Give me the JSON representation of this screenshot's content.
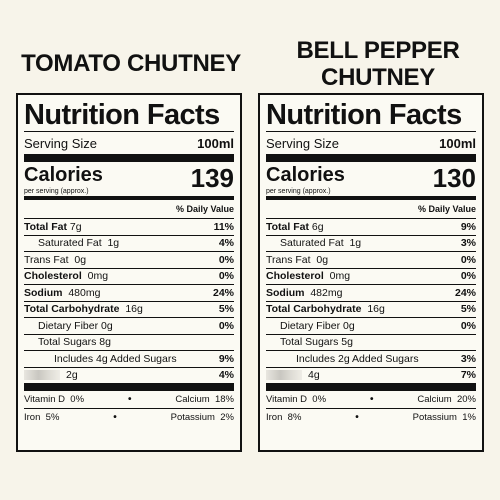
{
  "products": [
    {
      "title": "TOMATO CHUTNEY",
      "header": "Nutrition Facts",
      "serving_label": "Serving Size",
      "serving_value": "100ml",
      "calories_label": "Calories",
      "calories_sub": "per serving (approx.)",
      "calories_value": "139",
      "dv_header": "% Daily Value",
      "rows": {
        "total_fat": {
          "label": "Total Fat",
          "amount": "7g",
          "pct": "11%"
        },
        "sat_fat": {
          "label": "Saturated Fat",
          "amount": "1g",
          "pct": "4%"
        },
        "trans_fat": {
          "label": "Trans Fat",
          "amount": "0g",
          "pct": "0%"
        },
        "cholesterol": {
          "label": "Cholesterol",
          "amount": "0mg",
          "pct": "0%"
        },
        "sodium": {
          "label": "Sodium",
          "amount": "480mg",
          "pct": "24%"
        },
        "carb": {
          "label": "Total Carbohydrate",
          "amount": "16g",
          "pct": "5%"
        },
        "fiber": {
          "label": "Dietary Fiber",
          "amount": "0g",
          "pct": "0%"
        },
        "sugars": {
          "label": "Total Sugars",
          "amount": "8g"
        },
        "added_sugars": {
          "label": "Includes 4g Added Sugars",
          "pct": "9%"
        },
        "protein": {
          "amount": "2g",
          "pct": "4%"
        }
      },
      "vitamins": {
        "vit_d": {
          "label": "Vitamin D",
          "pct": "0%"
        },
        "calcium": {
          "label": "Calcium",
          "pct": "18%"
        },
        "iron": {
          "label": "Iron",
          "pct": "5%"
        },
        "potassium": {
          "label": "Potassium",
          "pct": "2%"
        }
      },
      "separator": "•"
    },
    {
      "title": "BELL PEPPER CHUTNEY",
      "header": "Nutrition Facts",
      "serving_label": "Serving Size",
      "serving_value": "100ml",
      "calories_label": "Calories",
      "calories_sub": "per serving (approx.)",
      "calories_value": "130",
      "dv_header": "% Daily Value",
      "rows": {
        "total_fat": {
          "label": "Total Fat",
          "amount": "6g",
          "pct": "9%"
        },
        "sat_fat": {
          "label": "Saturated Fat",
          "amount": "1g",
          "pct": "3%"
        },
        "trans_fat": {
          "label": "Trans Fat",
          "amount": "0g",
          "pct": "0%"
        },
        "cholesterol": {
          "label": "Cholesterol",
          "amount": "0mg",
          "pct": "0%"
        },
        "sodium": {
          "label": "Sodium",
          "amount": "482mg",
          "pct": "24%"
        },
        "carb": {
          "label": "Total Carbohydrate",
          "amount": "16g",
          "pct": "5%"
        },
        "fiber": {
          "label": "Dietary Fiber",
          "amount": "0g",
          "pct": "0%"
        },
        "sugars": {
          "label": "Total Sugars",
          "amount": "5g"
        },
        "added_sugars": {
          "label": "Includes 2g Added Sugars",
          "pct": "3%"
        },
        "protein": {
          "amount": "4g",
          "pct": "7%"
        }
      },
      "vitamins": {
        "vit_d": {
          "label": "Vitamin D",
          "pct": "0%"
        },
        "calcium": {
          "label": "Calcium",
          "pct": "20%"
        },
        "iron": {
          "label": "Iron",
          "pct": "8%"
        },
        "potassium": {
          "label": "Potassium",
          "pct": "1%"
        }
      },
      "separator": "•"
    }
  ],
  "colors": {
    "background": "#f7f4ea",
    "label_bg": "#fbfaf3",
    "ink": "#111111"
  }
}
